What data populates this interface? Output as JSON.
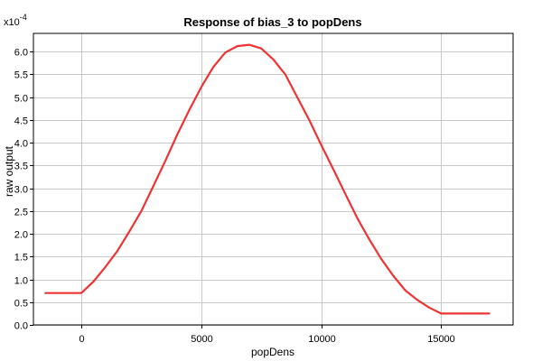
{
  "chart_data": {
    "type": "line",
    "title": "Response of bias_3 to popDens",
    "xlabel": "popDens",
    "ylabel": "raw output",
    "y_multiplier": "x10",
    "y_exponent": "-4",
    "xlim": [
      -2000,
      18000
    ],
    "ylim": [
      0.0,
      6.4
    ],
    "x_ticks": [
      0,
      5000,
      10000,
      15000
    ],
    "x_tick_labels": [
      "0",
      "5000",
      "10000",
      "15000"
    ],
    "y_ticks": [
      0.0,
      0.5,
      1.0,
      1.5,
      2.0,
      2.5,
      3.0,
      3.5,
      4.0,
      4.5,
      5.0,
      5.5,
      6.0
    ],
    "y_tick_labels": [
      "0.0",
      "0.5",
      "1.0",
      "1.5",
      "2.0",
      "2.5",
      "3.0",
      "3.5",
      "4.0",
      "4.5",
      "5.0",
      "5.5",
      "6.0"
    ],
    "grid": true,
    "series": [
      {
        "color": "#ee3333",
        "x": [
          -1500,
          0,
          500,
          1000,
          1500,
          2000,
          2500,
          3000,
          3500,
          4000,
          4500,
          5000,
          5500,
          6000,
          6500,
          7000,
          7500,
          8000,
          8500,
          9000,
          9500,
          10000,
          10500,
          11000,
          11500,
          12000,
          12500,
          13000,
          13500,
          14000,
          14500,
          15000,
          15500,
          16000,
          17000
        ],
        "y": [
          0.7,
          0.7,
          0.95,
          1.27,
          1.62,
          2.05,
          2.5,
          3.05,
          3.6,
          4.18,
          4.72,
          5.22,
          5.66,
          5.98,
          6.12,
          6.15,
          6.07,
          5.83,
          5.5,
          5.0,
          4.5,
          3.95,
          3.42,
          2.88,
          2.35,
          1.88,
          1.45,
          1.08,
          0.76,
          0.55,
          0.38,
          0.25,
          0.25,
          0.25,
          0.25
        ]
      }
    ]
  }
}
